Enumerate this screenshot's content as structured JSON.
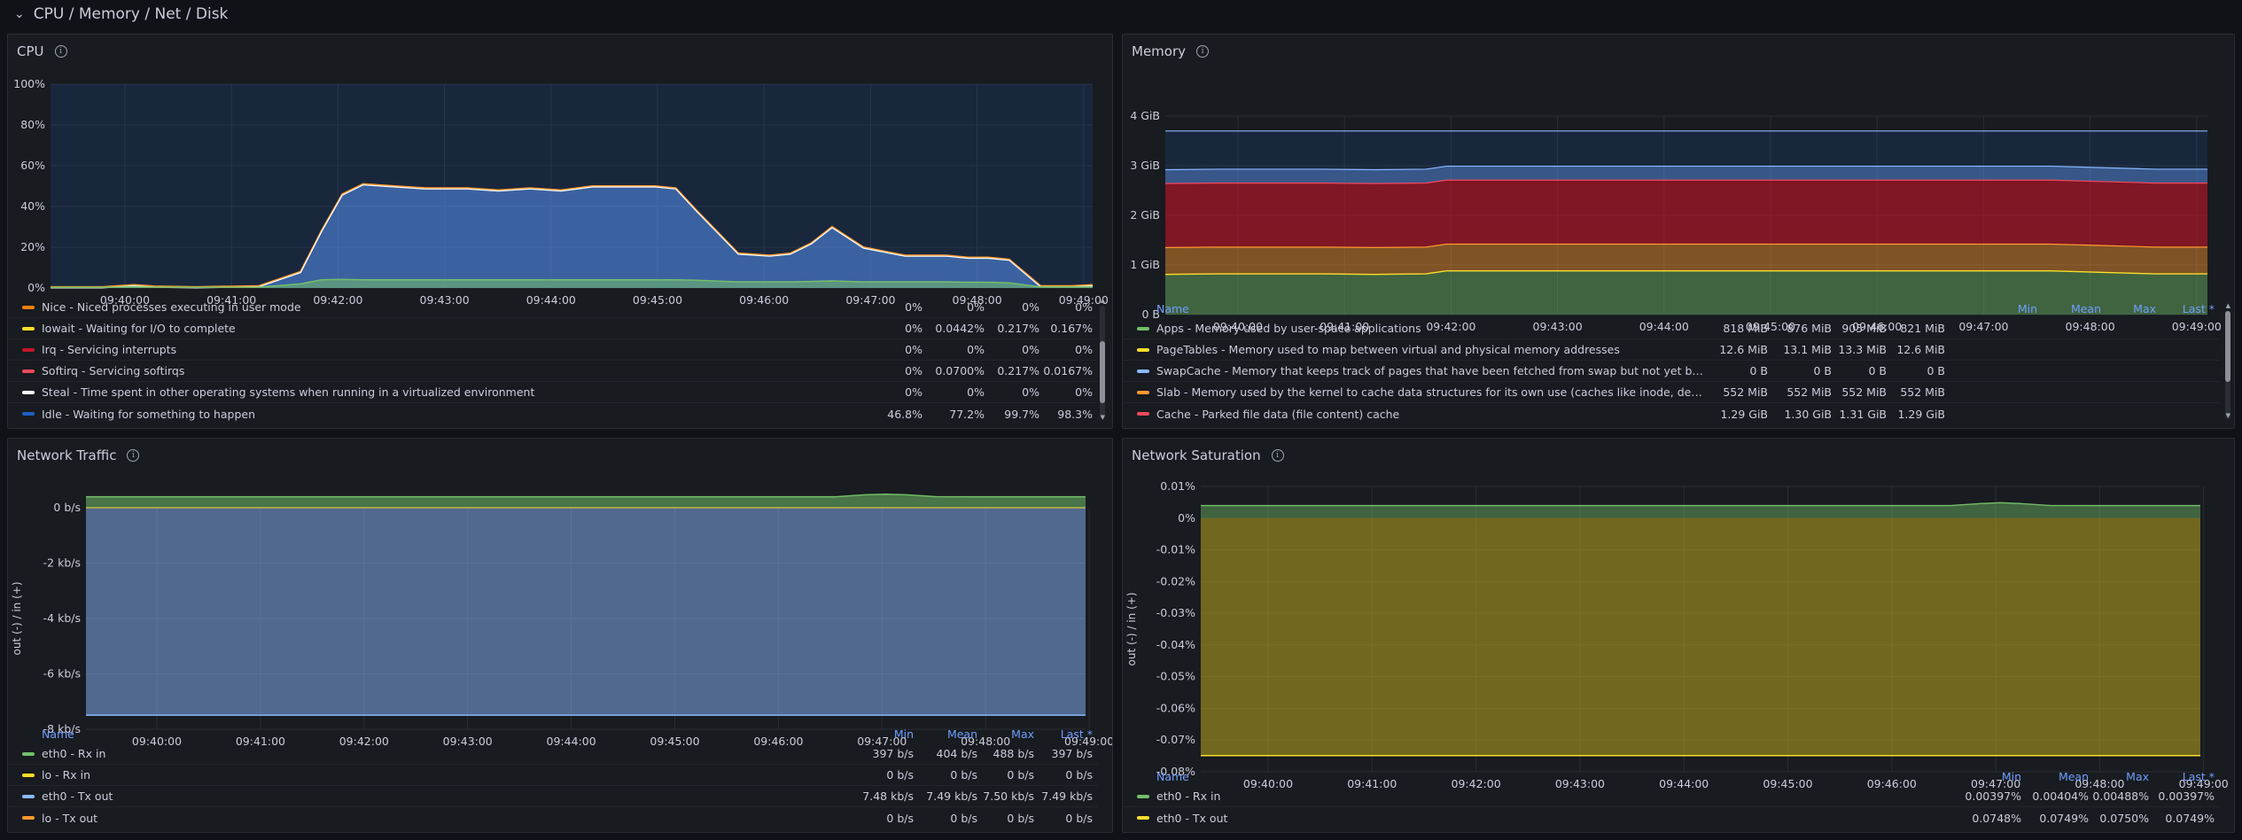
{
  "row": {
    "title": "CPU / Memory / Net / Disk"
  },
  "cpu": {
    "title": "CPU",
    "yticks": [
      "100%",
      "80%",
      "60%",
      "40%",
      "20%",
      "0%"
    ],
    "xticks": [
      "09:40:00",
      "09:41:00",
      "09:42:00",
      "09:43:00",
      "09:44:00",
      "09:45:00",
      "09:46:00",
      "09:47:00",
      "09:48:00",
      "09:49:00"
    ],
    "legend": [
      {
        "name": "Nice - Niced processes executing in user mode",
        "color": "#f2820a",
        "min": "0%",
        "mean": "0%",
        "max": "0%",
        "last": "0%"
      },
      {
        "name": "Iowait - Waiting for I/O to complete",
        "color": "#fade2a",
        "min": "0%",
        "mean": "0.0442%",
        "max": "0.217%",
        "last": "0.167%"
      },
      {
        "name": "Irq - Servicing interrupts",
        "color": "#c4162a",
        "min": "0%",
        "mean": "0%",
        "max": "0%",
        "last": "0%"
      },
      {
        "name": "Softirq - Servicing softirqs",
        "color": "#f2495c",
        "min": "0%",
        "mean": "0.0700%",
        "max": "0.217%",
        "last": "0.0167%"
      },
      {
        "name": "Steal - Time spent in other operating systems when running in a virtualized environment",
        "color": "#ffffff",
        "min": "0%",
        "mean": "0%",
        "max": "0%",
        "last": "0%"
      },
      {
        "name": "Idle - Waiting for something to happen",
        "color": "#1f60c4",
        "min": "46.8%",
        "mean": "77.2%",
        "max": "99.7%",
        "last": "98.3%"
      }
    ]
  },
  "memory": {
    "title": "Memory",
    "yticks": [
      "4 GiB",
      "3 GiB",
      "2 GiB",
      "1 GiB",
      "0 B"
    ],
    "xticks": [
      "09:40:00",
      "09:41:00",
      "09:42:00",
      "09:43:00",
      "09:44:00",
      "09:45:00",
      "09:46:00",
      "09:47:00",
      "09:48:00",
      "09:49:00"
    ],
    "head": {
      "name": "Name",
      "min": "Min",
      "mean": "Mean",
      "max": "Max",
      "last": "Last *"
    },
    "legend": [
      {
        "name": "Apps - Memory used by user-space applications",
        "color": "#73bf69",
        "min": "818 MiB",
        "mean": "876 MiB",
        "max": "905 MiB",
        "last": "821 MiB"
      },
      {
        "name": "PageTables - Memory used to map between virtual and physical memory addresses",
        "color": "#fade2a",
        "min": "12.6 MiB",
        "mean": "13.1 MiB",
        "max": "13.3 MiB",
        "last": "12.6 MiB"
      },
      {
        "name": "SwapCache - Memory that keeps track of pages that have been fetched from swap but not yet been ...",
        "color": "#8ab8ff",
        "min": "0 B",
        "mean": "0 B",
        "max": "0 B",
        "last": "0 B"
      },
      {
        "name": "Slab - Memory used by the kernel to cache data structures for its own use (caches like inode, dentry, ...",
        "color": "#ff9830",
        "min": "552 MiB",
        "mean": "552 MiB",
        "max": "552 MiB",
        "last": "552 MiB"
      },
      {
        "name": "Cache - Parked file data (file content) cache",
        "color": "#f2495c",
        "min": "1.29 GiB",
        "mean": "1.30 GiB",
        "max": "1.31 GiB",
        "last": "1.29 GiB"
      }
    ]
  },
  "net_traffic": {
    "title": "Network Traffic",
    "ylabel": "out (-) / in (+)",
    "yticks": [
      "0 b/s",
      "-2 kb/s",
      "-4 kb/s",
      "-6 kb/s",
      "-8 kb/s"
    ],
    "xticks": [
      "09:40:00",
      "09:41:00",
      "09:42:00",
      "09:43:00",
      "09:44:00",
      "09:45:00",
      "09:46:00",
      "09:47:00",
      "09:48:00",
      "09:49:00"
    ],
    "head": {
      "name": "Name",
      "min": "Min",
      "mean": "Mean",
      "max": "Max",
      "last": "Last *"
    },
    "legend": [
      {
        "name": "eth0 - Rx in",
        "color": "#73bf69",
        "min": "397 b/s",
        "mean": "404 b/s",
        "max": "488 b/s",
        "last": "397 b/s"
      },
      {
        "name": "lo - Rx in",
        "color": "#fade2a",
        "min": "0 b/s",
        "mean": "0 b/s",
        "max": "0 b/s",
        "last": "0 b/s"
      },
      {
        "name": "eth0 - Tx out",
        "color": "#8ab8ff",
        "min": "7.48 kb/s",
        "mean": "7.49 kb/s",
        "max": "7.50 kb/s",
        "last": "7.49 kb/s"
      },
      {
        "name": "lo - Tx out",
        "color": "#ff9830",
        "min": "0 b/s",
        "mean": "0 b/s",
        "max": "0 b/s",
        "last": "0 b/s"
      }
    ]
  },
  "net_sat": {
    "title": "Network Saturation",
    "ylabel": "out (-) / in (+)",
    "yticks": [
      "0.01%",
      "0%",
      "-0.01%",
      "-0.02%",
      "-0.03%",
      "-0.04%",
      "-0.05%",
      "-0.06%",
      "-0.07%",
      "-0.08%"
    ],
    "xticks": [
      "09:40:00",
      "09:41:00",
      "09:42:00",
      "09:43:00",
      "09:44:00",
      "09:45:00",
      "09:46:00",
      "09:47:00",
      "09:48:00",
      "09:49:00"
    ],
    "head": {
      "name": "Name",
      "min": "Min",
      "mean": "Mean",
      "max": "Max",
      "last": "Last *"
    },
    "legend": [
      {
        "name": "eth0 - Rx in",
        "color": "#73bf69",
        "min": "0.00397%",
        "mean": "0.00404%",
        "max": "0.00488%",
        "last": "0.00397%"
      },
      {
        "name": "eth0 - Tx out",
        "color": "#fade2a",
        "min": "0.0748%",
        "mean": "0.0749%",
        "max": "0.0750%",
        "last": "0.0749%"
      }
    ]
  }
}
